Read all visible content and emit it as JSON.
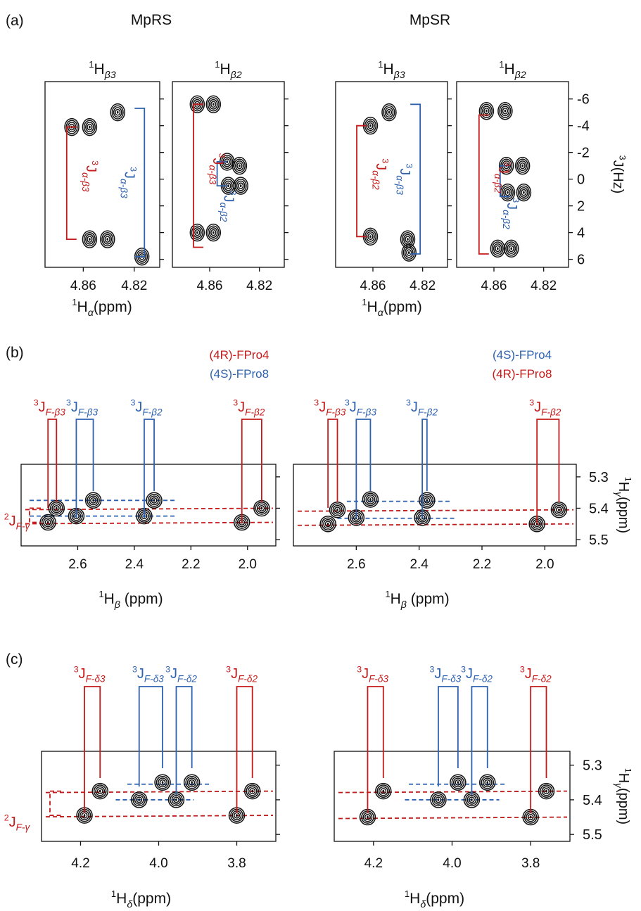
{
  "colors": {
    "red": "#c41a1a",
    "blue": "#2e62b0",
    "axis": "#111111",
    "contour": "#111111"
  },
  "panel_labels": {
    "a": "(a)",
    "b": "(b)",
    "c": "(c)"
  },
  "chart_data": [
    {
      "id": "a",
      "type": "contour",
      "group_titles": [
        "MpRS",
        "MpSR"
      ],
      "subplot_titles": [
        "1Hβ3",
        "1Hβ2",
        "1Hβ3",
        "1Hβ2"
      ],
      "xlabel": "1Hα(ppm)",
      "ylabel": "3J(Hz)",
      "xlim": [
        4.8,
        4.89
      ],
      "ylim": [
        -7.3,
        6.6
      ],
      "xticks": [
        4.86,
        4.82
      ],
      "yticks": [
        -6,
        -4,
        -2,
        0,
        2,
        4,
        6
      ],
      "ytick_labels": [
        "-6",
        "-4",
        "-2",
        "0",
        "2",
        "4",
        "6"
      ],
      "bracket_labels": [
        "3Jα-β3",
        "3Jα-β3",
        "3Jα-β2",
        "3Jα-β2"
      ],
      "subplots": [
        {
          "peaks": [
            [
              4.869,
              -3.9
            ],
            [
              4.855,
              -3.9
            ],
            [
              4.833,
              -5.0
            ],
            [
              4.855,
              4.5
            ],
            [
              4.841,
              4.5
            ],
            [
              4.814,
              5.8
            ]
          ],
          "brackets": [
            {
              "color": "red",
              "x": 4.873,
              "y1": -3.9,
              "y2": 4.5
            },
            {
              "color": "blue",
              "x": 4.812,
              "y1": -5.3,
              "y2": 5.8
            }
          ]
        },
        {
          "peaks": [
            [
              4.87,
              -5.6
            ],
            [
              4.857,
              -5.6
            ],
            [
              4.846,
              -1.3
            ],
            [
              4.836,
              -1.0
            ],
            [
              4.845,
              0.5
            ],
            [
              4.835,
              0.5
            ],
            [
              4.87,
              4.0
            ],
            [
              4.857,
              4.0
            ]
          ],
          "brackets": [
            {
              "color": "red",
              "x": 4.873,
              "y1": -5.6,
              "y2": 5.1
            },
            {
              "color": "blue",
              "x": 4.854,
              "y1": -1.3,
              "y2": 0.5
            }
          ]
        },
        {
          "peaks": [
            [
              4.862,
              -4.0
            ],
            [
              4.847,
              -5.0
            ],
            [
              4.862,
              4.3
            ],
            [
              4.832,
              4.5
            ],
            [
              4.831,
              5.5
            ]
          ],
          "brackets": [
            {
              "color": "red",
              "x": 4.873,
              "y1": -4.0,
              "y2": 4.3
            },
            {
              "color": "blue",
              "x": 4.822,
              "y1": -5.6,
              "y2": 5.6
            }
          ]
        },
        {
          "peaks": [
            [
              4.866,
              -5.1
            ],
            [
              4.851,
              -5.1
            ],
            [
              4.85,
              -1.0
            ],
            [
              4.837,
              -1.0
            ],
            [
              4.849,
              1.0
            ],
            [
              4.836,
              1.0
            ],
            [
              4.857,
              5.2
            ],
            [
              4.846,
              5.2
            ]
          ],
          "brackets": [
            {
              "color": "red",
              "x": 4.872,
              "y1": -4.8,
              "y2": 5.6
            },
            {
              "color": "blue",
              "x": 4.855,
              "y1": -1.0,
              "y2": 1.3
            }
          ]
        }
      ]
    },
    {
      "id": "b",
      "type": "contour",
      "legend_left": [
        {
          "text": "(4R)-FPro4",
          "color": "red"
        },
        {
          "text": "(4S)-FPro8",
          "color": "blue"
        }
      ],
      "legend_right": [
        {
          "text": "(4S)-FPro4",
          "color": "blue"
        },
        {
          "text": "(4R)-FPro8",
          "color": "red"
        }
      ],
      "xlabel": "1Hβ (ppm)",
      "ylabel": "1Hγ(ppm)",
      "xlim": [
        2.8,
        1.9
      ],
      "ylim": [
        5.26,
        5.52
      ],
      "xticks": [
        2.6,
        2.4,
        2.2,
        2.0
      ],
      "xtick_labels": [
        "2.6",
        "2.4",
        "2.2",
        "2.0"
      ],
      "yticks": [
        5.3,
        5.4,
        5.5
      ],
      "ytick_labels": [
        "5.3",
        "5.4",
        "5.5"
      ],
      "top_labels": [
        "3JF-β3",
        "3JF-β3",
        "3JF-β2",
        "3JF-β2"
      ],
      "side_label": "2JF-γ",
      "subplots": [
        {
          "peaks": [
            [
              2.675,
              5.4,
              "red"
            ],
            [
              2.705,
              5.445,
              "red"
            ],
            [
              2.545,
              5.375,
              "blue"
            ],
            [
              2.605,
              5.425,
              "blue"
            ],
            [
              2.33,
              5.375,
              "blue"
            ],
            [
              2.365,
              5.425,
              "blue"
            ],
            [
              1.95,
              5.4,
              "red"
            ],
            [
              2.02,
              5.445,
              "red"
            ]
          ],
          "dashed": [
            [
              2.77,
              2.25,
              5.375,
              "blue"
            ],
            [
              2.77,
              2.25,
              5.425,
              "blue"
            ]
          ]
        },
        {
          "peaks": [
            [
              2.66,
              5.405,
              "red"
            ],
            [
              2.69,
              5.45,
              "red"
            ],
            [
              2.555,
              5.372,
              "blue"
            ],
            [
              2.6,
              5.43,
              "blue"
            ],
            [
              2.375,
              5.375,
              "blue"
            ],
            [
              2.39,
              5.43,
              "blue"
            ],
            [
              1.955,
              5.405,
              "red"
            ],
            [
              2.025,
              5.45,
              "red"
            ]
          ],
          "dashed": [
            [
              2.63,
              2.3,
              5.378,
              "blue"
            ],
            [
              2.66,
              2.28,
              5.432,
              "blue"
            ]
          ]
        }
      ]
    },
    {
      "id": "c",
      "type": "contour",
      "xlabel": "1Hδ(ppm)",
      "ylabel": "1Hγ(ppm)",
      "xlim": [
        4.3,
        3.7
      ],
      "ylim": [
        5.26,
        5.52
      ],
      "xticks": [
        4.2,
        4.0,
        3.8
      ],
      "xtick_labels": [
        "4.2",
        "4.0",
        "3.8"
      ],
      "yticks": [
        5.3,
        5.4,
        5.5
      ],
      "ytick_labels": [
        "5.3",
        "5.4",
        "5.5"
      ],
      "top_labels": [
        "3JF-δ3",
        "3JF-δ3",
        "3JF-δ2",
        "3JF-δ2"
      ],
      "side_label": "2JF-γ",
      "subplots": [
        {
          "peaks": [
            [
              4.15,
              5.375,
              "red"
            ],
            [
              4.19,
              5.445,
              "red"
            ],
            [
              3.99,
              5.35,
              "blue"
            ],
            [
              3.915,
              5.35,
              "blue"
            ],
            [
              4.05,
              5.4,
              "blue"
            ],
            [
              3.955,
              5.4,
              "blue"
            ],
            [
              3.76,
              5.375,
              "red"
            ],
            [
              3.8,
              5.445,
              "red"
            ]
          ],
          "dashed": [
            [
              4.08,
              3.87,
              5.355,
              "blue"
            ],
            [
              4.11,
              3.91,
              5.4,
              "blue"
            ]
          ]
        },
        {
          "peaks": [
            [
              4.175,
              5.375,
              "red"
            ],
            [
              4.215,
              5.45,
              "red"
            ],
            [
              3.985,
              5.35,
              "blue"
            ],
            [
              3.91,
              5.35,
              "blue"
            ],
            [
              4.035,
              5.4,
              "blue"
            ],
            [
              3.95,
              5.4,
              "blue"
            ],
            [
              3.76,
              5.375,
              "red"
            ],
            [
              3.8,
              5.45,
              "red"
            ]
          ],
          "dashed": [
            [
              4.11,
              3.86,
              5.355,
              "blue"
            ],
            [
              4.12,
              3.88,
              5.4,
              "blue"
            ]
          ]
        }
      ]
    }
  ]
}
